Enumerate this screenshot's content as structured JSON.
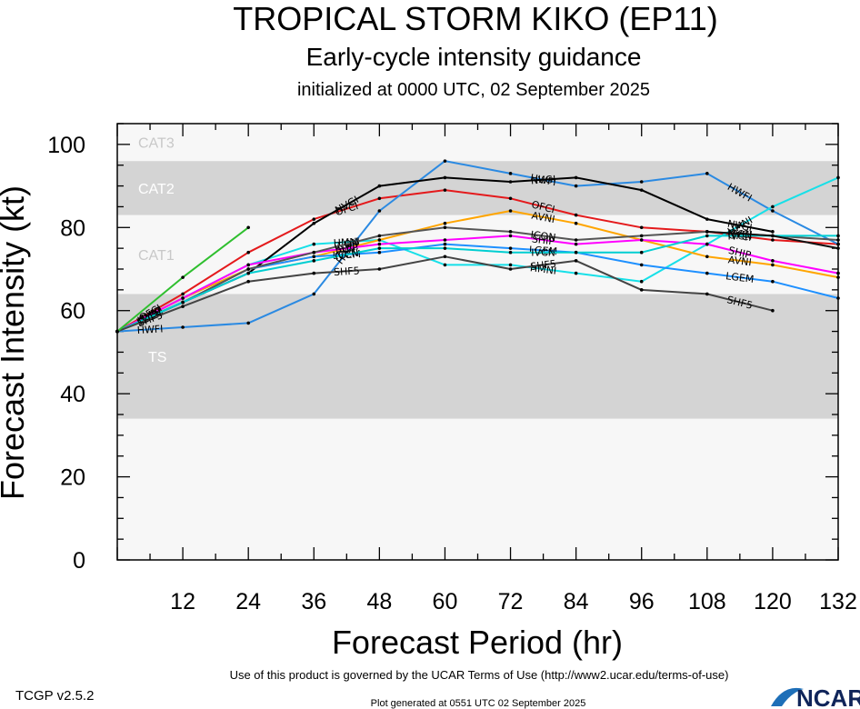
{
  "header": {
    "title": "TROPICAL STORM KIKO (EP11)",
    "subtitle": "Early-cycle intensity guidance",
    "init_line": "initialized at 0000 UTC, 02 September 2025"
  },
  "footer": {
    "terms": "Use of this product is governed by the UCAR Terms of Use (http://www2.ucar.edu/terms-of-use)",
    "generated": "Plot generated at 0551 UTC   02 September 2025",
    "version": "TCGP v2.5.2",
    "logo_text": "NCAR"
  },
  "chart_data": {
    "type": "line",
    "xlabel": "Forecast Period (hr)",
    "ylabel": "Forecast Intensity (kt)",
    "xlim": [
      0,
      132
    ],
    "ylim": [
      0,
      105
    ],
    "xticks": [
      12,
      24,
      36,
      48,
      60,
      72,
      84,
      96,
      108,
      120,
      132
    ],
    "yticks": [
      0,
      20,
      40,
      60,
      80,
      100
    ],
    "grid": false,
    "bands": [
      {
        "label": "TS",
        "from": 34,
        "to": 64,
        "color": "#d4d4d4"
      },
      {
        "label": "CAT1",
        "from": 64,
        "to": 83,
        "color": "#f7f7f7"
      },
      {
        "label": "CAT2",
        "from": 83,
        "to": 96,
        "color": "#d4d4d4"
      },
      {
        "label": "CAT3",
        "from": 96,
        "to": 105,
        "color": "#f7f7f7"
      }
    ],
    "background_color": "#f7f7f7",
    "series": [
      {
        "name": "OFCI",
        "color": "#e41a1c",
        "x": [
          0,
          12,
          24,
          36,
          48,
          60,
          72,
          84,
          96,
          108,
          120,
          132
        ],
        "values": [
          55,
          64,
          74,
          82,
          87,
          89,
          87,
          83,
          80,
          79,
          77,
          76
        ]
      },
      {
        "name": "HWFI",
        "color": "#2b8ae2",
        "x": [
          0,
          12,
          24,
          36,
          48,
          60,
          72,
          84,
          96,
          108,
          120,
          132
        ],
        "values": [
          55,
          56,
          57,
          64,
          84,
          96,
          93,
          90,
          91,
          93,
          84,
          76
        ]
      },
      {
        "name": "HMNI",
        "color": "#17e0e8",
        "x": [
          0,
          12,
          24,
          36,
          48,
          60,
          72,
          84,
          96,
          108,
          120,
          132
        ],
        "values": [
          55,
          63,
          71,
          76,
          77,
          71,
          71,
          69,
          67,
          76,
          85,
          92
        ]
      },
      {
        "name": "NVGI",
        "color": "#000000",
        "x": [
          0,
          12,
          24,
          36,
          48,
          60,
          72,
          84,
          96,
          108,
          120
        ],
        "values": [
          55,
          62,
          69,
          81,
          90,
          92,
          91,
          92,
          89,
          82,
          79
        ]
      },
      {
        "name": "AVNI",
        "color": "#ffa500",
        "x": [
          0,
          12,
          24,
          36,
          48,
          60,
          72,
          84,
          96,
          108,
          120,
          132
        ],
        "values": [
          55,
          63,
          70,
          73,
          77,
          81,
          84,
          81,
          77,
          73,
          71,
          68
        ]
      },
      {
        "name": "SHIP",
        "color": "#ff00ff",
        "x": [
          0,
          12,
          24,
          36,
          48,
          60,
          72,
          84,
          96,
          108,
          120,
          132
        ],
        "values": [
          55,
          63,
          71,
          74,
          76,
          77,
          78,
          76,
          77,
          76,
          72,
          69
        ]
      },
      {
        "name": "LGEM",
        "color": "#1e90ff",
        "x": [
          0,
          12,
          24,
          36,
          48,
          60,
          72,
          84,
          96,
          108,
          120,
          132
        ],
        "values": [
          55,
          62,
          70,
          73,
          74,
          76,
          75,
          74,
          71,
          69,
          67,
          63
        ]
      },
      {
        "name": "ICON",
        "color": "#555555",
        "x": [
          0,
          12,
          24,
          36,
          48,
          60,
          72,
          84,
          96,
          108,
          120,
          132
        ],
        "values": [
          55,
          62,
          70,
          74,
          78,
          80,
          79,
          77,
          78,
          79,
          78,
          77
        ]
      },
      {
        "name": "IVCN",
        "color": "#00ced1",
        "x": [
          0,
          12,
          24,
          36,
          48,
          60,
          72,
          84,
          96,
          108,
          120,
          132
        ],
        "values": [
          55,
          62,
          69,
          72,
          75,
          75,
          74,
          74,
          74,
          78,
          78,
          78
        ]
      },
      {
        "name": "SHF5",
        "color": "#444444",
        "x": [
          0,
          12,
          24,
          36,
          48,
          60,
          72,
          84,
          96,
          108,
          120
        ],
        "values": [
          55,
          61,
          67,
          69,
          70,
          73,
          70,
          72,
          65,
          64,
          60
        ]
      },
      {
        "name": "NVCI",
        "color": "#111111",
        "x": [
          108,
          120,
          132
        ],
        "values": [
          79,
          78,
          75
        ]
      },
      {
        "name": "",
        "color": "#2fbf2f",
        "x": [
          0,
          12,
          24
        ],
        "values": [
          55,
          68,
          80
        ]
      }
    ]
  }
}
